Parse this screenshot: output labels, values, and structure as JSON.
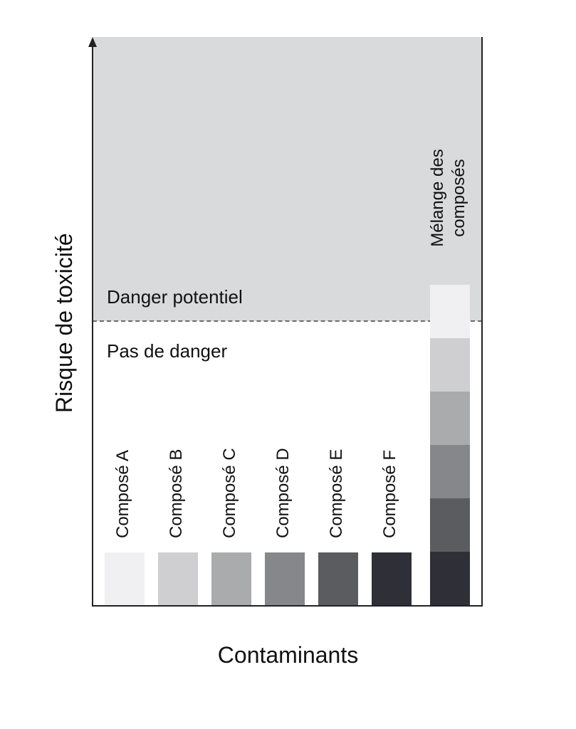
{
  "axes": {
    "y_title": "Risque de toxicité",
    "x_title": "Contaminants"
  },
  "zones": {
    "danger": {
      "label": "Danger potentiel",
      "color": "#d9dadc"
    },
    "safe": {
      "label": "Pas de danger",
      "color": "#ffffff"
    }
  },
  "compounds": [
    {
      "label": "Composé A",
      "color": "#f0f0f2"
    },
    {
      "label": "Composé B",
      "color": "#cfcfd1"
    },
    {
      "label": "Composé C",
      "color": "#aaabad"
    },
    {
      "label": "Composé D",
      "color": "#86878a"
    },
    {
      "label": "Composé E",
      "color": "#5b5c60"
    },
    {
      "label": "Composé F",
      "color": "#2f2f37"
    }
  ],
  "mixture": {
    "label_line1": "Mélange des",
    "label_line2": "composés",
    "segment_colors": [
      "#f0f0f2",
      "#cfcfd1",
      "#aaabad",
      "#86878a",
      "#5b5c60",
      "#2f2f37"
    ]
  }
}
